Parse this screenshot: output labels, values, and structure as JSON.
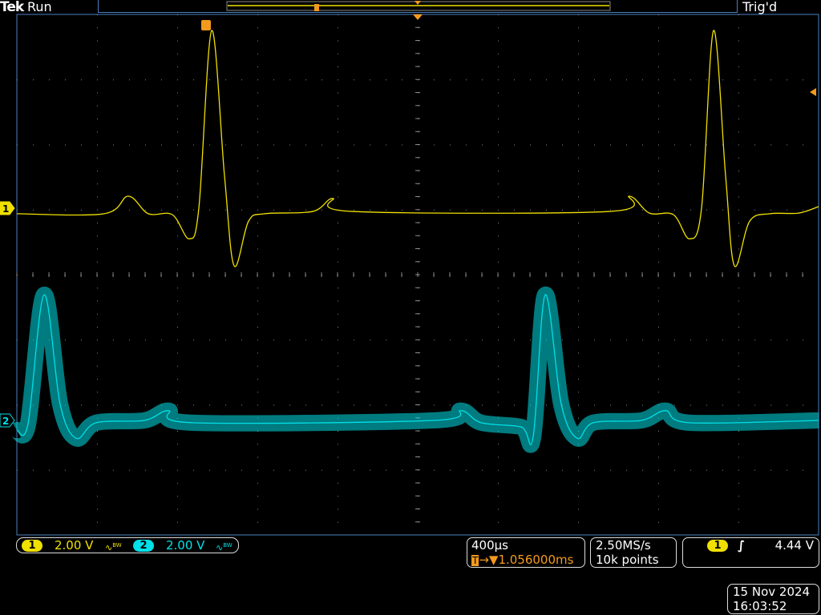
{
  "header": {
    "brand": "Tek",
    "acq_state": "Run",
    "trigger_state": "Trig'd"
  },
  "colors": {
    "ch1": "#f0e000",
    "ch2": "#00e0e8",
    "trigger": "#f39a1e",
    "graticule": "#888888",
    "frame": "#4a7fc0"
  },
  "channels": [
    {
      "number": "1",
      "scale": "2.00 V",
      "bw_icon": "bandwidth-limit-icon",
      "bw_label": "BW"
    },
    {
      "number": "2",
      "scale": "2.00 V",
      "bw_icon": "bandwidth-limit-icon",
      "bw_label": "BW"
    }
  ],
  "timebase": {
    "scale": "400µs",
    "trigger_marker": "T",
    "position": "→▼1.056000ms"
  },
  "acquisition": {
    "sample_rate": "2.50MS/s",
    "record_length": "10k points"
  },
  "trigger": {
    "source": "1",
    "slope_icon": "rising-edge-icon",
    "level": "4.44 V"
  },
  "datetime": {
    "date": "15 Nov 2024",
    "time": "16:03:52"
  },
  "chart_data": {
    "type": "line",
    "xlabel": "",
    "ylabel": "",
    "x_units": "ms",
    "y_units": "V",
    "xlim": [
      -2.0,
      2.0
    ],
    "divisions": {
      "horizontal": 10,
      "vertical": 8
    },
    "grid": true,
    "series": [
      {
        "name": "1",
        "volts_per_div": 2.0,
        "points": [
          [
            -2.0,
            -0.17
          ],
          [
            -1.564,
            -0.17
          ],
          [
            -1.444,
            0.37
          ],
          [
            -1.344,
            -0.17
          ],
          [
            -1.224,
            -0.2
          ],
          [
            -1.14,
            -0.94
          ],
          [
            -1.092,
            0.0
          ],
          [
            -1.028,
            5.46
          ],
          [
            -0.964,
            1.0
          ],
          [
            -0.916,
            -1.77
          ],
          [
            -0.844,
            -0.4
          ],
          [
            -0.764,
            -0.17
          ],
          [
            -0.524,
            -0.1
          ],
          [
            -0.424,
            0.3
          ],
          [
            -0.324,
            -0.1
          ],
          [
            0.956,
            -0.1
          ],
          [
            1.056,
            0.37
          ],
          [
            1.156,
            -0.15
          ],
          [
            1.276,
            -0.2
          ],
          [
            1.356,
            -0.94
          ],
          [
            1.416,
            0.0
          ],
          [
            1.476,
            5.46
          ],
          [
            1.536,
            1.0
          ],
          [
            1.58,
            -1.77
          ],
          [
            1.656,
            -0.4
          ],
          [
            1.756,
            -0.17
          ],
          [
            1.9,
            -0.15
          ],
          [
            2.0,
            0.05
          ]
        ]
      },
      {
        "name": "2",
        "volts_per_div": 2.0,
        "noise_band": 0.25,
        "points": [
          [
            -2.0,
            -0.3
          ],
          [
            -1.944,
            -0.1
          ],
          [
            -1.864,
            3.86
          ],
          [
            -1.784,
            0.5
          ],
          [
            -1.704,
            -0.55
          ],
          [
            -1.604,
            -0.07
          ],
          [
            -1.364,
            0.0
          ],
          [
            -1.244,
            0.3
          ],
          [
            -1.124,
            -0.07
          ],
          [
            0.076,
            0.0
          ],
          [
            0.216,
            0.3
          ],
          [
            0.316,
            -0.07
          ],
          [
            0.516,
            -0.2
          ],
          [
            0.576,
            -0.5
          ],
          [
            0.636,
            3.86
          ],
          [
            0.716,
            0.5
          ],
          [
            0.796,
            -0.55
          ],
          [
            0.876,
            -0.07
          ],
          [
            1.116,
            0.0
          ],
          [
            1.236,
            0.3
          ],
          [
            1.356,
            -0.07
          ],
          [
            2.0,
            0.0
          ]
        ]
      }
    ]
  }
}
